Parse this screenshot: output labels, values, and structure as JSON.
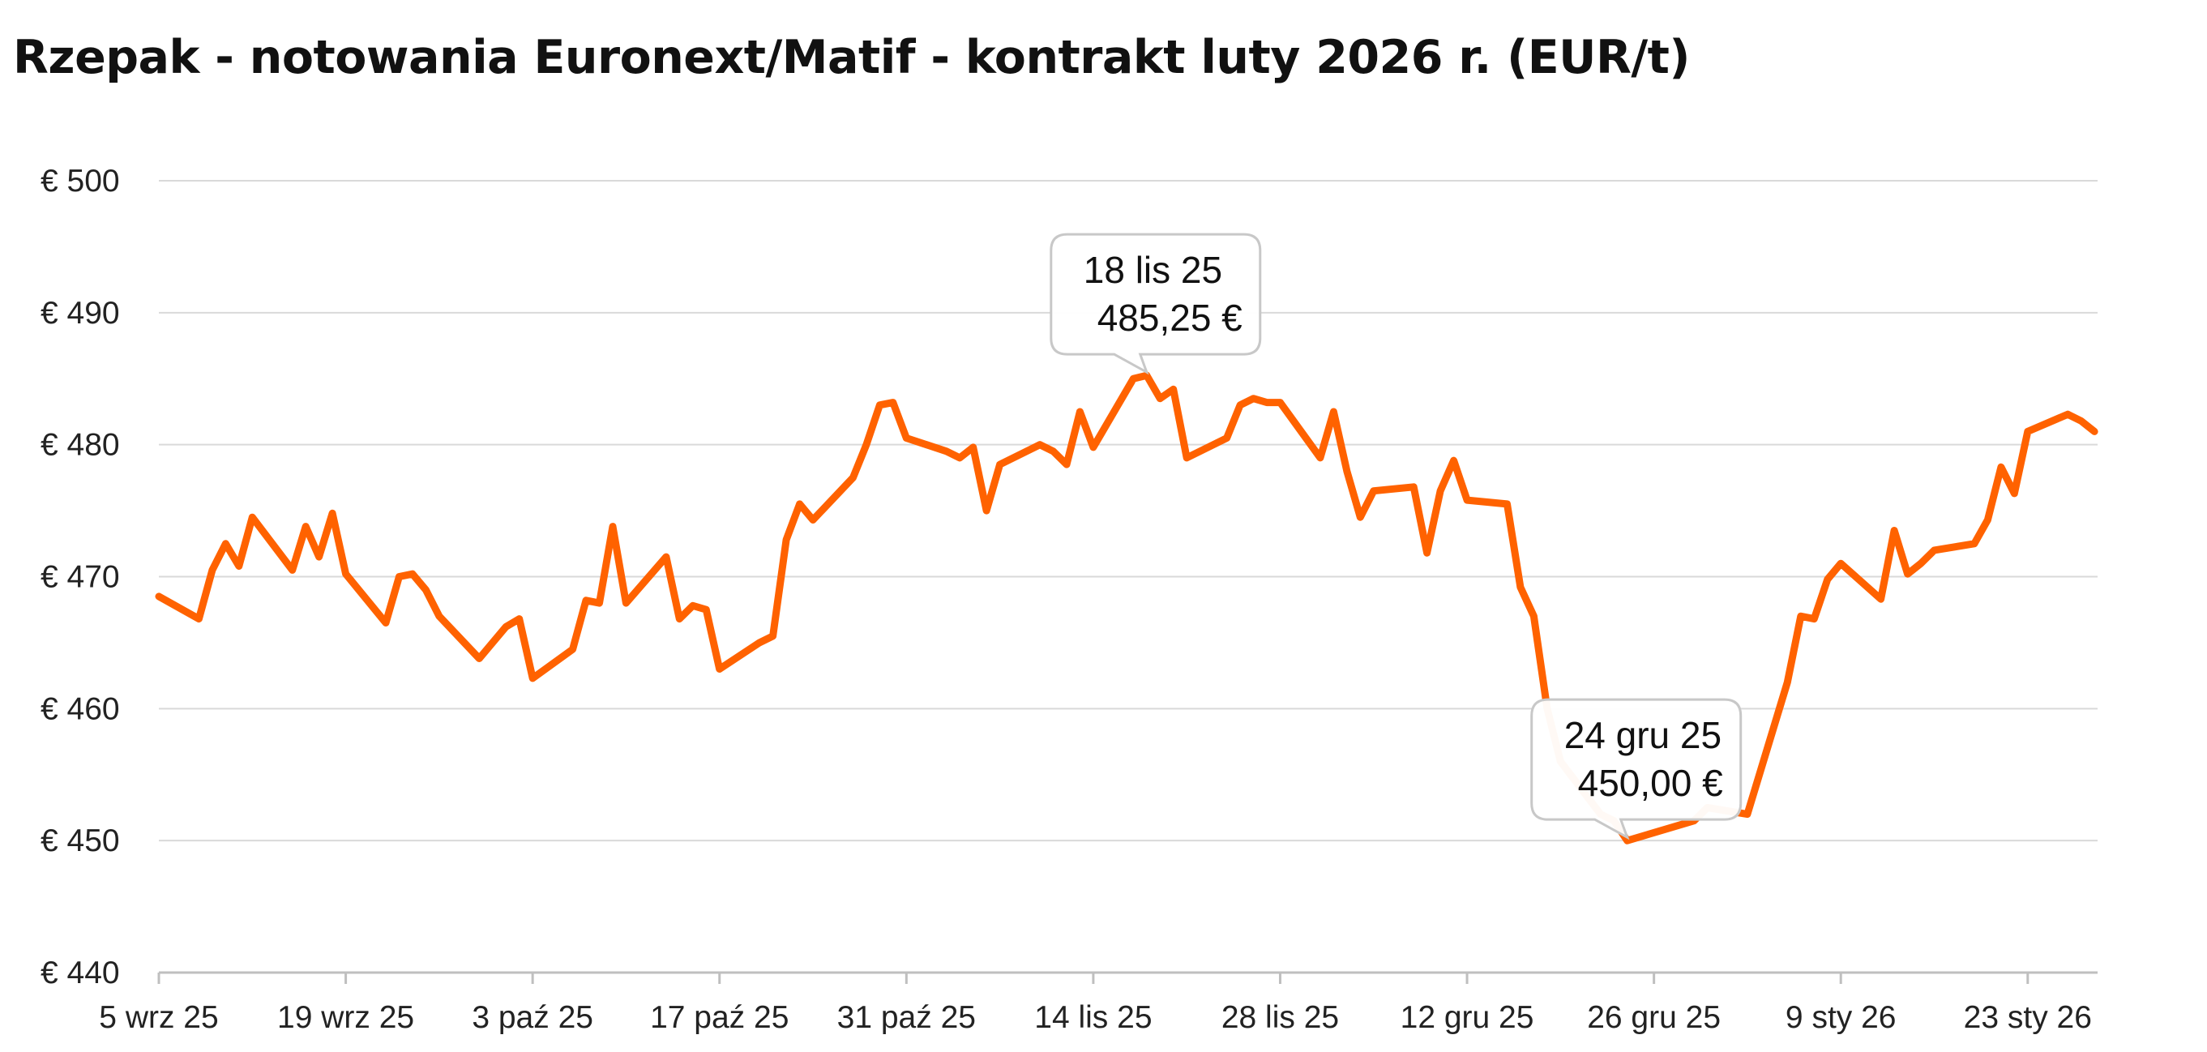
{
  "chart_data": {
    "type": "line",
    "title": "Rzepak - notowania Euronext/Matif - kontrakt luty 2026 r. (EUR/t)",
    "xlabel": "",
    "ylabel": "",
    "ylim": [
      440,
      500
    ],
    "y_ticks": [
      440,
      450,
      460,
      470,
      480,
      490,
      500
    ],
    "y_tick_labels": [
      "€ 440",
      "€ 450",
      "€ 460",
      "€ 470",
      "€ 480",
      "€ 490",
      "€ 500"
    ],
    "x_ticks": [
      {
        "date": "2025-09-05",
        "label": "5 wrz 25"
      },
      {
        "date": "2025-09-19",
        "label": "19 wrz 25"
      },
      {
        "date": "2025-10-03",
        "label": "3 paź 25"
      },
      {
        "date": "2025-10-17",
        "label": "17 paź 25"
      },
      {
        "date": "2025-10-31",
        "label": "31 paź 25"
      },
      {
        "date": "2025-11-14",
        "label": "14 lis 25"
      },
      {
        "date": "2025-11-28",
        "label": "28 lis 25"
      },
      {
        "date": "2025-12-12",
        "label": "12 gru 25"
      },
      {
        "date": "2025-12-26",
        "label": "26 gru 25"
      },
      {
        "date": "2026-01-09",
        "label": "9 sty 26"
      },
      {
        "date": "2026-01-23",
        "label": "23 sty 26"
      }
    ],
    "grid": true,
    "legend": "none",
    "line_color": "#FF6200",
    "series": [
      {
        "points": [
          [
            "2025-09-05",
            468.5
          ],
          [
            "2025-09-08",
            466.8
          ],
          [
            "2025-09-09",
            470.5
          ],
          [
            "2025-09-10",
            472.5
          ],
          [
            "2025-09-11",
            470.8
          ],
          [
            "2025-09-12",
            474.5
          ],
          [
            "2025-09-15",
            470.5
          ],
          [
            "2025-09-16",
            473.8
          ],
          [
            "2025-09-17",
            471.5
          ],
          [
            "2025-09-18",
            474.8
          ],
          [
            "2025-09-19",
            470.2
          ],
          [
            "2025-09-22",
            466.5
          ],
          [
            "2025-09-23",
            470.0
          ],
          [
            "2025-09-24",
            470.2
          ],
          [
            "2025-09-25",
            469.0
          ],
          [
            "2025-09-26",
            467.0
          ],
          [
            "2025-09-29",
            463.8
          ],
          [
            "2025-09-30",
            465.0
          ],
          [
            "2025-10-01",
            466.2
          ],
          [
            "2025-10-02",
            466.8
          ],
          [
            "2025-10-03",
            462.3
          ],
          [
            "2025-10-06",
            464.5
          ],
          [
            "2025-10-07",
            468.2
          ],
          [
            "2025-10-08",
            468.0
          ],
          [
            "2025-10-09",
            473.8
          ],
          [
            "2025-10-10",
            468.0
          ],
          [
            "2025-10-13",
            471.5
          ],
          [
            "2025-10-14",
            466.8
          ],
          [
            "2025-10-15",
            467.8
          ],
          [
            "2025-10-16",
            467.5
          ],
          [
            "2025-10-17",
            463.0
          ],
          [
            "2025-10-20",
            465.0
          ],
          [
            "2025-10-21",
            465.5
          ],
          [
            "2025-10-22",
            472.8
          ],
          [
            "2025-10-23",
            475.5
          ],
          [
            "2025-10-24",
            474.3
          ],
          [
            "2025-10-27",
            477.5
          ],
          [
            "2025-10-28",
            480.0
          ],
          [
            "2025-10-29",
            483.0
          ],
          [
            "2025-10-30",
            483.2
          ],
          [
            "2025-10-31",
            480.5
          ],
          [
            "2025-11-03",
            479.5
          ],
          [
            "2025-11-04",
            479.0
          ],
          [
            "2025-11-05",
            479.8
          ],
          [
            "2025-11-06",
            475.0
          ],
          [
            "2025-11-07",
            478.5
          ],
          [
            "2025-11-10",
            480.0
          ],
          [
            "2025-11-11",
            479.5
          ],
          [
            "2025-11-12",
            478.5
          ],
          [
            "2025-11-13",
            482.5
          ],
          [
            "2025-11-14",
            479.8
          ],
          [
            "2025-11-17",
            485.0
          ],
          [
            "2025-11-18",
            485.25
          ],
          [
            "2025-11-19",
            483.5
          ],
          [
            "2025-11-20",
            484.2
          ],
          [
            "2025-11-21",
            479.0
          ],
          [
            "2025-11-24",
            480.5
          ],
          [
            "2025-11-25",
            483.0
          ],
          [
            "2025-11-26",
            483.5
          ],
          [
            "2025-11-27",
            483.2
          ],
          [
            "2025-11-28",
            483.2
          ],
          [
            "2025-12-01",
            479.0
          ],
          [
            "2025-12-02",
            482.5
          ],
          [
            "2025-12-03",
            478.0
          ],
          [
            "2025-12-04",
            474.5
          ],
          [
            "2025-12-05",
            476.5
          ],
          [
            "2025-12-08",
            476.8
          ],
          [
            "2025-12-09",
            471.8
          ],
          [
            "2025-12-10",
            476.5
          ],
          [
            "2025-12-11",
            478.8
          ],
          [
            "2025-12-12",
            475.8
          ],
          [
            "2025-12-15",
            475.5
          ],
          [
            "2025-12-16",
            469.2
          ],
          [
            "2025-12-17",
            467.0
          ],
          [
            "2025-12-18",
            460.0
          ],
          [
            "2025-12-19",
            456.0
          ],
          [
            "2025-12-22",
            452.0
          ],
          [
            "2025-12-23",
            451.5
          ],
          [
            "2025-12-24",
            450.0
          ],
          [
            "2025-12-29",
            451.5
          ],
          [
            "2025-12-30",
            452.5
          ],
          [
            "2026-01-02",
            452.0
          ],
          [
            "2026-01-05",
            462.0
          ],
          [
            "2026-01-06",
            467.0
          ],
          [
            "2026-01-07",
            466.8
          ],
          [
            "2026-01-08",
            469.8
          ],
          [
            "2026-01-09",
            471.0
          ],
          [
            "2026-01-12",
            468.3
          ],
          [
            "2026-01-13",
            473.5
          ],
          [
            "2026-01-14",
            470.2
          ],
          [
            "2026-01-15",
            471.0
          ],
          [
            "2026-01-16",
            472.0
          ],
          [
            "2026-01-19",
            472.5
          ],
          [
            "2026-01-20",
            474.3
          ],
          [
            "2026-01-21",
            478.3
          ],
          [
            "2026-01-22",
            476.3
          ],
          [
            "2026-01-23",
            481.0
          ],
          [
            "2026-01-26",
            482.3
          ],
          [
            "2026-01-27",
            481.8
          ],
          [
            "2026-01-28",
            481.0
          ]
        ]
      }
    ],
    "annotations": [
      {
        "date": "2025-11-18",
        "value": 485.25,
        "line1": "18 lis 25",
        "line2": "485,25 €"
      },
      {
        "date": "2025-12-24",
        "value": 450.0,
        "line1": "24 gru 25",
        "line2": "450,00 €"
      }
    ]
  }
}
